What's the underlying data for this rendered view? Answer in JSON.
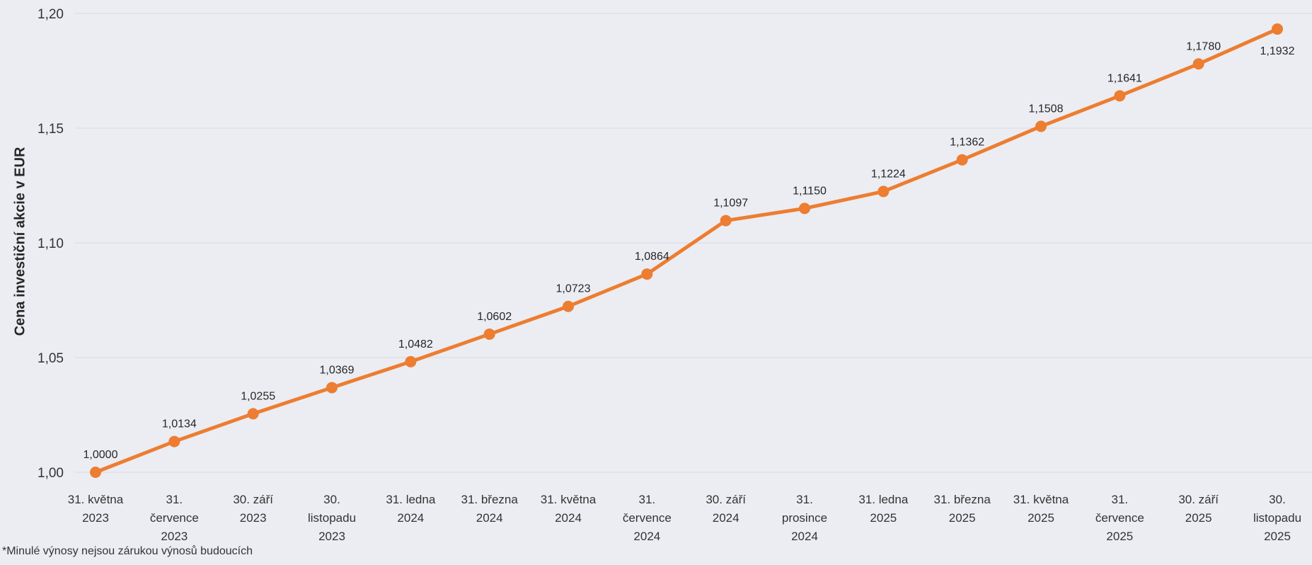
{
  "page": {
    "background": "#EBEDF2"
  },
  "chart_data": {
    "type": "line",
    "title": "",
    "xlabel": "",
    "ylabel": "Cena investiční akcie v EUR",
    "footnote": "*Minulé výnosy nejsou zárukou výnosů budoucích",
    "ylim": [
      1.0,
      1.2
    ],
    "grid": true,
    "legend": "none",
    "line_color": "#ED7D31",
    "marker": "circle",
    "gridline_color": "#DCDFE6",
    "yticks": [
      {
        "value": 1.0,
        "label": "1,00"
      },
      {
        "value": 1.05,
        "label": "1,05"
      },
      {
        "value": 1.1,
        "label": "1,10"
      },
      {
        "value": 1.15,
        "label": "1,15"
      },
      {
        "value": 1.2,
        "label": "1,20"
      }
    ],
    "points": [
      {
        "date": "31. května 2023",
        "lines": [
          "31. května",
          "2023"
        ],
        "value": 1.0,
        "label": "1,0000"
      },
      {
        "date": "31. července 2023",
        "lines": [
          "31.",
          "července",
          "2023"
        ],
        "value": 1.0134,
        "label": "1,0134"
      },
      {
        "date": "30. září 2023",
        "lines": [
          "30. září",
          "2023"
        ],
        "value": 1.0255,
        "label": "1,0255"
      },
      {
        "date": "30. listopadu 2023",
        "lines": [
          "30.",
          "listopadu",
          "2023"
        ],
        "value": 1.0369,
        "label": "1,0369"
      },
      {
        "date": "31. ledna 2024",
        "lines": [
          "31. ledna",
          "2024"
        ],
        "value": 1.0482,
        "label": "1,0482"
      },
      {
        "date": "31. března 2024",
        "lines": [
          "31. března",
          "2024"
        ],
        "value": 1.0602,
        "label": "1,0602"
      },
      {
        "date": "31. května 2024",
        "lines": [
          "31. května",
          "2024"
        ],
        "value": 1.0723,
        "label": "1,0723"
      },
      {
        "date": "31. července 2024",
        "lines": [
          "31.",
          "července",
          "2024"
        ],
        "value": 1.0864,
        "label": "1,0864"
      },
      {
        "date": "30. září 2024",
        "lines": [
          "30. září",
          "2024"
        ],
        "value": 1.1097,
        "label": "1,1097"
      },
      {
        "date": "31. prosince 2024",
        "lines": [
          "31.",
          "prosince",
          "2024"
        ],
        "value": 1.115,
        "label": "1,1150"
      },
      {
        "date": "31. ledna 2025",
        "lines": [
          "31. ledna",
          "2025"
        ],
        "value": 1.1224,
        "label": "1,1224"
      },
      {
        "date": "31. března 2025",
        "lines": [
          "31. března",
          "2025"
        ],
        "value": 1.1362,
        "label": "1,1362"
      },
      {
        "date": "31. května 2025",
        "lines": [
          "31. května",
          "2025"
        ],
        "value": 1.1508,
        "label": "1,1508"
      },
      {
        "date": "31. července 2025",
        "lines": [
          "31.",
          "července",
          "2025"
        ],
        "value": 1.1641,
        "label": "1,1641"
      },
      {
        "date": "30. září 2025",
        "lines": [
          "30. září",
          "2025"
        ],
        "value": 1.178,
        "label": "1,1780"
      },
      {
        "date": "30. listopadu 2025",
        "lines": [
          "30.",
          "listopadu",
          "2025"
        ],
        "value": 1.1932,
        "label": "1,1932"
      }
    ]
  }
}
